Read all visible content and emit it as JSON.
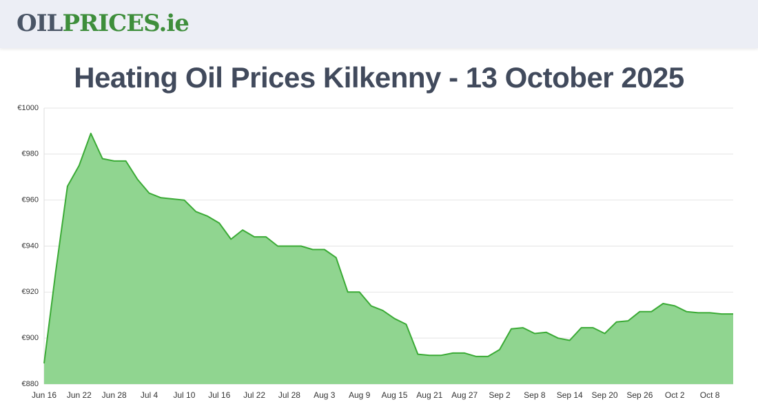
{
  "header": {
    "logo": [
      "OIL",
      "PRICES",
      ".ie"
    ]
  },
  "chart_data": {
    "type": "area",
    "title": "Heating Oil Prices Kilkenny - 13 October 2025",
    "categories": [
      "Jun 16",
      null,
      null,
      "Jun 22",
      null,
      null,
      "Jun 28",
      null,
      null,
      "Jul 4",
      null,
      null,
      "Jul 10",
      null,
      null,
      "Jul 16",
      null,
      null,
      "Jul 22",
      null,
      null,
      "Jul 28",
      null,
      null,
      "Aug 3",
      null,
      null,
      "Aug 9",
      null,
      null,
      "Aug 15",
      null,
      null,
      "Aug 21",
      null,
      null,
      "Aug 27",
      null,
      null,
      "Sep 2",
      null,
      null,
      "Sep 8",
      null,
      null,
      "Sep 14",
      null,
      null,
      "Sep 20",
      null,
      null,
      "Sep 26",
      null,
      null,
      "Oct 2",
      null,
      null,
      "Oct 8",
      null,
      null
    ],
    "values": [
      889,
      929,
      966,
      975,
      989,
      978,
      977,
      977,
      969,
      963,
      961,
      960.5,
      960,
      955,
      953,
      950,
      943,
      947,
      944,
      944,
      940,
      940,
      940,
      938.5,
      938.5,
      935,
      920,
      920,
      914,
      912,
      908.5,
      906,
      893,
      892.5,
      892.5,
      893.5,
      893.5,
      892,
      892,
      895,
      904,
      904.5,
      902,
      902.5,
      900,
      899,
      904.5,
      904.5,
      902,
      907,
      907.5,
      911.5,
      911.5,
      915,
      914,
      911.5,
      911,
      911,
      910.5,
      910.5
    ],
    "color": "#3aaa35",
    "fill": "#90d590",
    "ylim": [
      880,
      1000
    ],
    "yticks": [
      {
        "value": 880,
        "label": "€880"
      },
      {
        "value": 900,
        "label": "€900"
      },
      {
        "value": 920,
        "label": "€920"
      },
      {
        "value": 940,
        "label": "€940"
      },
      {
        "value": 960,
        "label": "€960"
      },
      {
        "value": 980,
        "label": "€980"
      },
      {
        "value": 1000,
        "label": "€1000"
      }
    ],
    "grid": true
  }
}
